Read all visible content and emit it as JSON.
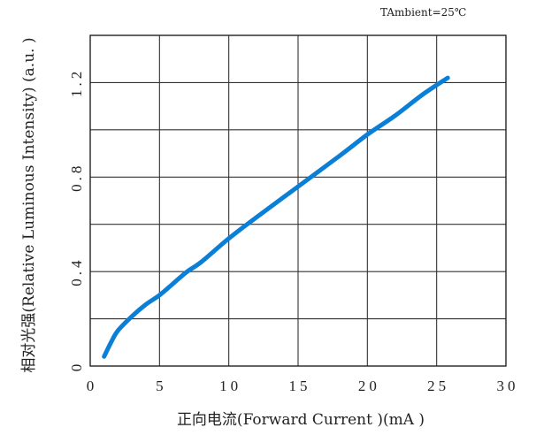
{
  "chart_data": {
    "type": "line",
    "xlabel": "正向电流(Forward  Current )(mA )",
    "ylabel": "相对光强(Relative Luminous Intensity) (a.u. )",
    "annotation": "TAmbient=25℃",
    "xlim": [
      0,
      30
    ],
    "ylim": [
      0,
      1.4
    ],
    "x_ticks": [
      "0",
      "5",
      "10",
      "15",
      "20",
      "25",
      "30"
    ],
    "y_ticks": [
      "0",
      "0.4",
      "0.8",
      "1.2"
    ],
    "grid": true,
    "series": [
      {
        "color": "#0a7fd8",
        "x": [
          1,
          1.5,
          2,
          3,
          4,
          5,
          6,
          7,
          8,
          10,
          12,
          15,
          18,
          20,
          22,
          24,
          25.8
        ],
        "y": [
          0.04,
          0.1,
          0.15,
          0.21,
          0.26,
          0.3,
          0.35,
          0.4,
          0.44,
          0.54,
          0.63,
          0.76,
          0.89,
          0.98,
          1.06,
          1.15,
          1.22
        ]
      }
    ]
  }
}
